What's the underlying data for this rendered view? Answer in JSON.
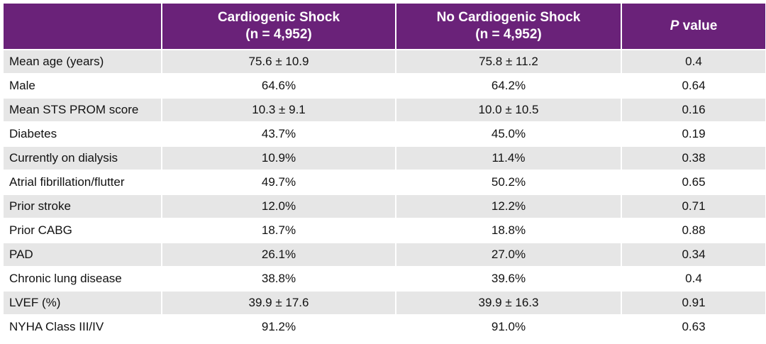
{
  "header": {
    "col0": "",
    "col1_line1": "Cardiogenic Shock",
    "col1_line2": "(n = 4,952)",
    "col2_line1": "No Cardiogenic Shock",
    "col2_line2": "(n = 4,952)",
    "col3_italic": "P",
    "col3_rest": " value"
  },
  "rows": [
    {
      "label": "Mean age (years)",
      "shock": "75.6 ± 10.9",
      "no_shock": "75.8 ± 11.2",
      "p": "0.4"
    },
    {
      "label": "Male",
      "shock": "64.6%",
      "no_shock": "64.2%",
      "p": "0.64"
    },
    {
      "label": "Mean STS PROM score",
      "shock": "10.3 ± 9.1",
      "no_shock": "10.0 ± 10.5",
      "p": "0.16"
    },
    {
      "label": "Diabetes",
      "shock": "43.7%",
      "no_shock": "45.0%",
      "p": "0.19"
    },
    {
      "label": "Currently on dialysis",
      "shock": "10.9%",
      "no_shock": "11.4%",
      "p": "0.38"
    },
    {
      "label": "Atrial fibrillation/flutter",
      "shock": "49.7%",
      "no_shock": "50.2%",
      "p": "0.65"
    },
    {
      "label": "Prior stroke",
      "shock": "12.0%",
      "no_shock": "12.2%",
      "p": "0.71"
    },
    {
      "label": "Prior CABG",
      "shock": "18.7%",
      "no_shock": "18.8%",
      "p": "0.88"
    },
    {
      "label": "PAD",
      "shock": "26.1%",
      "no_shock": "27.0%",
      "p": "0.34"
    },
    {
      "label": "Chronic lung disease",
      "shock": "38.8%",
      "no_shock": "39.6%",
      "p": "0.4"
    },
    {
      "label": "LVEF (%)",
      "shock": "39.9 ± 17.6",
      "no_shock": "39.9 ± 16.3",
      "p": "0.91"
    },
    {
      "label": "NYHA Class III/IV",
      "shock": "91.2%",
      "no_shock": "91.0%",
      "p": "0.63"
    }
  ],
  "colors": {
    "header_bg": "#6a2279",
    "header_text": "#ffffff",
    "row_alt_bg": "#e6e6e6",
    "row_bg": "#ffffff"
  }
}
